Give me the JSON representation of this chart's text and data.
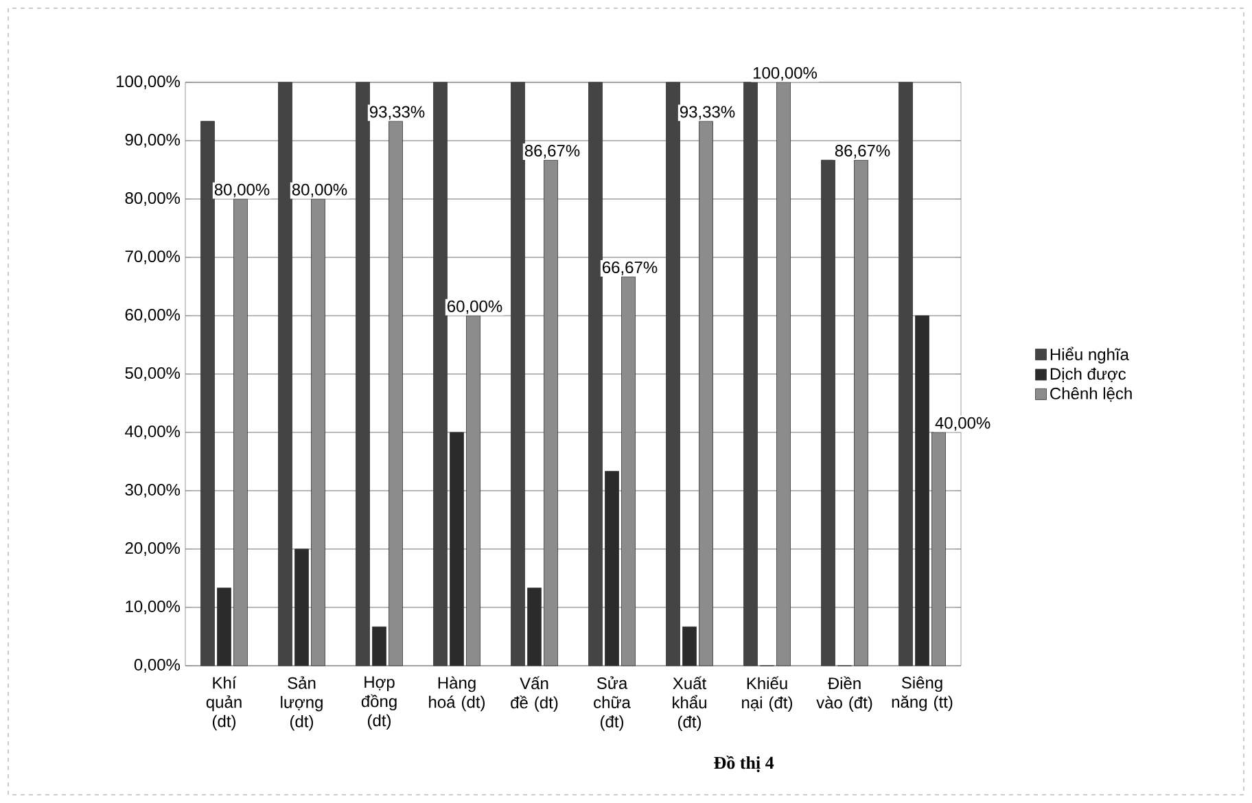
{
  "chart_data": {
    "type": "bar",
    "categories": [
      "Khí quản (dt)",
      "Sản lượng (dt)",
      "Hợp đồng (dt)",
      "Hàng hoá (dt)",
      "Vấn đề (dt)",
      "Sửa chữa (đt)",
      "Xuất khẩu (đt)",
      "Khiếu nại (đt)",
      "Điền vào (đt)",
      "Siêng năng (tt)"
    ],
    "series": [
      {
        "name": "Hiểu nghĩa",
        "color": "#444444",
        "values": [
          93.33,
          100,
          100,
          100,
          100,
          100,
          100,
          100,
          86.67,
          100
        ]
      },
      {
        "name": "Dịch được",
        "color": "#2b2b2b",
        "values": [
          13.33,
          20,
          6.67,
          40,
          13.33,
          33.33,
          6.67,
          0,
          0,
          60
        ]
      },
      {
        "name": "Chênh lệch",
        "color": "#8c8c8c",
        "values": [
          80,
          80,
          93.33,
          60,
          86.67,
          66.67,
          93.33,
          100,
          86.67,
          40
        ],
        "value_labels": [
          "80,00%",
          "80,00%",
          "93,33%",
          "60,00%",
          "86,67%",
          "66,67%",
          "93,33%",
          "100,00%",
          "86,67%",
          "40,00%"
        ]
      }
    ],
    "ylim": [
      0,
      100
    ],
    "yticks": [
      {
        "value": 0,
        "label": "0,00%"
      },
      {
        "value": 10,
        "label": "10,00%"
      },
      {
        "value": 20,
        "label": "20,00%"
      },
      {
        "value": 30,
        "label": "30,00%"
      },
      {
        "value": 40,
        "label": "40,00%"
      },
      {
        "value": 50,
        "label": "50,00%"
      },
      {
        "value": 60,
        "label": "60,00%"
      },
      {
        "value": 70,
        "label": "70,00%"
      },
      {
        "value": 80,
        "label": "80,00%"
      },
      {
        "value": 90,
        "label": "90,00%"
      },
      {
        "value": 100,
        "label": "100,00%"
      }
    ],
    "grid": "y",
    "legend": "right",
    "annotations": [
      "Đồ thị 4"
    ]
  }
}
